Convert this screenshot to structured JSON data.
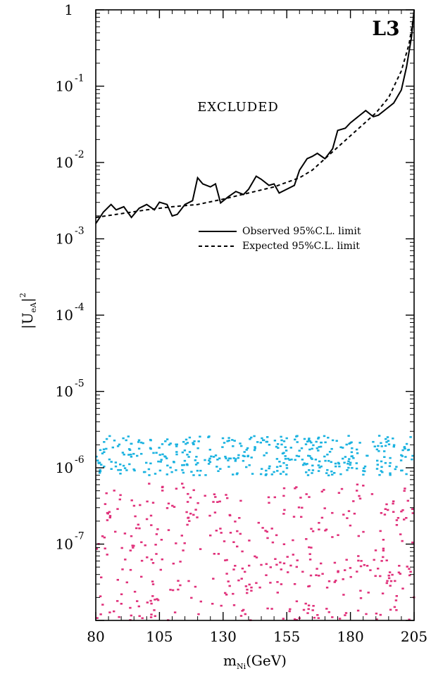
{
  "chart_data": {
    "type": "line",
    "experiment_label": "L3",
    "region_label": "EXCLUDED",
    "xlabel": "m",
    "xlabel_subscript": "Ni",
    "xlabel_unit": "(GeV)",
    "ylabel": "|U",
    "ylabel_subscript": "eA",
    "ylabel_suffix": "|",
    "ylabel_power": "2",
    "x_ticks": [
      80,
      105,
      130,
      155,
      180,
      205
    ],
    "y_tick_labels": [
      {
        "base": "1",
        "exp": ""
      },
      {
        "base": "10",
        "exp": "-1"
      },
      {
        "base": "10",
        "exp": "-2"
      },
      {
        "base": "10",
        "exp": "-3"
      },
      {
        "base": "10",
        "exp": "-4"
      },
      {
        "base": "10",
        "exp": "-5"
      },
      {
        "base": "10",
        "exp": "-6"
      },
      {
        "base": "10",
        "exp": "-7"
      }
    ],
    "xlim": [
      80,
      205
    ],
    "ylim_log10": [
      -8,
      0
    ],
    "y_scale": "log",
    "legend_position": "right",
    "series": [
      {
        "name": "Observed 95%C.L. limit",
        "style": "solid",
        "x": [
          80,
          83,
          86,
          88,
          91,
          94,
          97,
          100,
          103,
          105,
          108,
          110,
          112,
          115,
          118,
          120,
          122,
          125,
          127,
          129,
          132,
          135,
          138,
          140,
          143,
          145,
          148,
          150,
          152,
          155,
          158,
          160,
          163,
          165,
          167,
          170,
          173,
          175,
          178,
          180,
          183,
          186,
          189,
          191,
          194,
          197,
          200,
          202,
          204,
          205
        ],
        "y_log10": [
          -2.8,
          -2.65,
          -2.55,
          -2.62,
          -2.58,
          -2.72,
          -2.6,
          -2.55,
          -2.62,
          -2.52,
          -2.55,
          -2.7,
          -2.68,
          -2.55,
          -2.5,
          -2.2,
          -2.28,
          -2.32,
          -2.28,
          -2.53,
          -2.45,
          -2.38,
          -2.42,
          -2.35,
          -2.18,
          -2.22,
          -2.3,
          -2.28,
          -2.4,
          -2.35,
          -2.3,
          -2.1,
          -1.95,
          -1.92,
          -1.88,
          -1.95,
          -1.82,
          -1.58,
          -1.55,
          -1.48,
          -1.4,
          -1.32,
          -1.4,
          -1.38,
          -1.3,
          -1.22,
          -1.05,
          -0.75,
          -0.35,
          0
        ]
      },
      {
        "name": "Expected 95%C.L. limit",
        "style": "dashed",
        "x": [
          80,
          90,
          100,
          110,
          120,
          130,
          140,
          150,
          160,
          165,
          170,
          175,
          180,
          185,
          190,
          195,
          200,
          203,
          205
        ],
        "y_log10": [
          -2.72,
          -2.67,
          -2.62,
          -2.58,
          -2.55,
          -2.48,
          -2.4,
          -2.32,
          -2.2,
          -2.1,
          -1.95,
          -1.8,
          -1.65,
          -1.5,
          -1.35,
          -1.15,
          -0.8,
          -0.45,
          -0.05
        ]
      }
    ],
    "scatter_regions": [
      {
        "color": "#1ab2e0",
        "x_range": [
          80,
          205
        ],
        "y_log10_range": [
          -6.1,
          -5.58
        ],
        "count": 400
      },
      {
        "color": "#e0307a",
        "x_range": [
          80,
          205
        ],
        "y_log10_range": [
          -8,
          -6.2
        ],
        "count": 400
      }
    ],
    "colors": {
      "cyan_points": "#1ab2e0",
      "magenta_points": "#e0307a",
      "lines": "#000000"
    }
  }
}
